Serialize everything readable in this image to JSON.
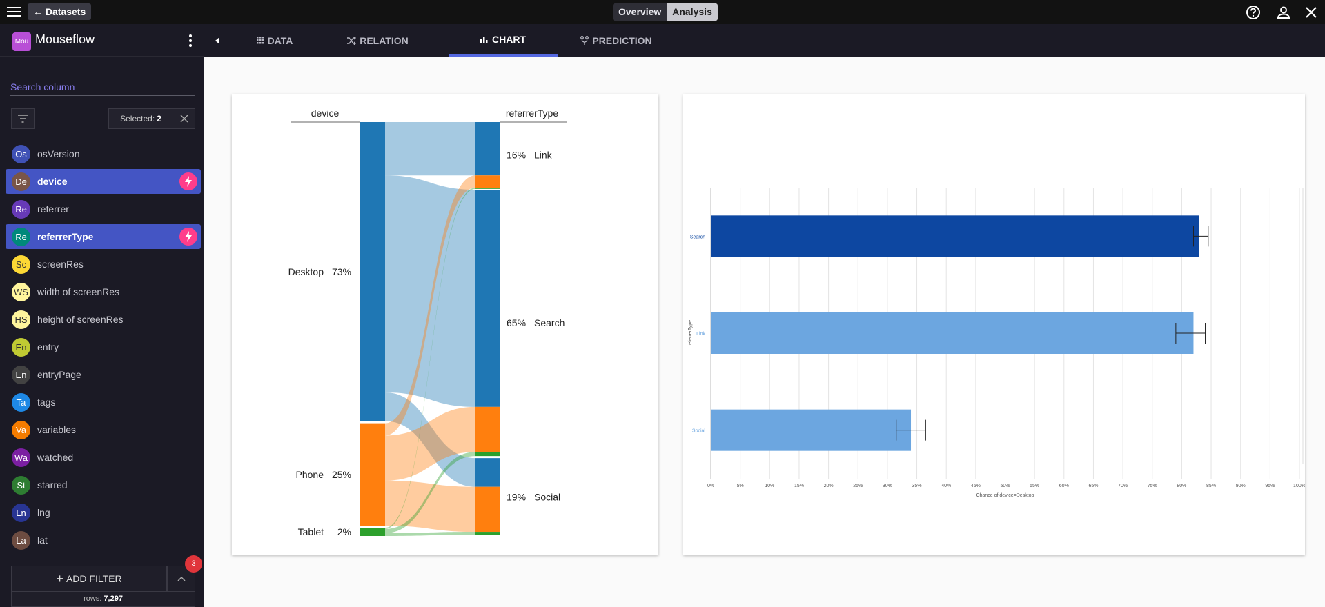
{
  "topbar": {
    "back_label": "Datasets",
    "views": [
      "Overview",
      "Analysis"
    ],
    "active_view": "Analysis"
  },
  "sidebar": {
    "dataset_badge": "Mou",
    "dataset_name": "Mouseflow",
    "search_placeholder": "Search column",
    "selected_label": "Selected:",
    "selected_count": "2",
    "columns": [
      {
        "abbr": "Os",
        "label": "osVersion",
        "color": "#3f51b5",
        "selected": false
      },
      {
        "abbr": "De",
        "label": "device",
        "color": "#795548",
        "selected": true
      },
      {
        "abbr": "Re",
        "label": "referrer",
        "color": "#673ab7",
        "selected": false
      },
      {
        "abbr": "Re",
        "label": "referrerType",
        "color": "#00897b",
        "selected": true
      },
      {
        "abbr": "Sc",
        "label": "screenRes",
        "color": "#fdd835",
        "selected": false
      },
      {
        "abbr": "WS",
        "label": "width of screenRes",
        "color": "#fff59d",
        "selected": false
      },
      {
        "abbr": "HS",
        "label": "height of screenRes",
        "color": "#fff59d",
        "selected": false
      },
      {
        "abbr": "En",
        "label": "entry",
        "color": "#c0ca33",
        "selected": false
      },
      {
        "abbr": "En",
        "label": "entryPage",
        "color": "#424242",
        "selected": false
      },
      {
        "abbr": "Ta",
        "label": "tags",
        "color": "#1e88e5",
        "selected": false
      },
      {
        "abbr": "Va",
        "label": "variables",
        "color": "#f57c00",
        "selected": false
      },
      {
        "abbr": "Wa",
        "label": "watched",
        "color": "#7b1fa2",
        "selected": false
      },
      {
        "abbr": "St",
        "label": "starred",
        "color": "#2e7d32",
        "selected": false
      },
      {
        "abbr": "Ln",
        "label": "lng",
        "color": "#283593",
        "selected": false
      },
      {
        "abbr": "La",
        "label": "lat",
        "color": "#6d4c41",
        "selected": false
      }
    ],
    "add_filter_label": "ADD FILTER",
    "filter_count": "3",
    "rows_label": "rows:",
    "rows_value": "7,297"
  },
  "tabs": [
    {
      "label": "DATA",
      "icon": "grid-icon"
    },
    {
      "label": "RELATION",
      "icon": "shuffle-icon"
    },
    {
      "label": "CHART",
      "icon": "bar-chart-icon"
    },
    {
      "label": "PREDICTION",
      "icon": "fork-icon"
    }
  ],
  "active_tab": "CHART",
  "colors": {
    "blue": "#1f77b4",
    "orange": "#ff7f0e",
    "green": "#2ca02c",
    "accent": "#5568e0",
    "bolt": "#ff3d8b"
  },
  "chart_data": [
    {
      "type": "sankey",
      "left_axis": "device",
      "right_axis": "referrerType",
      "left_nodes": [
        {
          "label": "Desktop",
          "pct": "73%",
          "value": 73
        },
        {
          "label": "Phone",
          "pct": "25%",
          "value": 25
        },
        {
          "label": "Tablet",
          "pct": "2%",
          "value": 2
        }
      ],
      "right_nodes": [
        {
          "label": "Link",
          "pct": "16%",
          "value": 16
        },
        {
          "label": "Search",
          "pct": "65%",
          "value": 65
        },
        {
          "label": "Social",
          "pct": "19%",
          "value": 19
        }
      ],
      "flows": [
        {
          "from": "Desktop",
          "to": "Link",
          "value": 13
        },
        {
          "from": "Desktop",
          "to": "Search",
          "value": 53
        },
        {
          "from": "Desktop",
          "to": "Social",
          "value": 7
        },
        {
          "from": "Phone",
          "to": "Link",
          "value": 3
        },
        {
          "from": "Phone",
          "to": "Search",
          "value": 11
        },
        {
          "from": "Phone",
          "to": "Social",
          "value": 11
        },
        {
          "from": "Tablet",
          "to": "Link",
          "value": 0.3
        },
        {
          "from": "Tablet",
          "to": "Search",
          "value": 1
        },
        {
          "from": "Tablet",
          "to": "Social",
          "value": 0.7
        }
      ]
    },
    {
      "type": "bar",
      "orientation": "horizontal",
      "categories": [
        "Search",
        "Link",
        "Social"
      ],
      "values": [
        83,
        82,
        34
      ],
      "error_low": [
        82,
        79,
        31.5
      ],
      "error_high": [
        84.5,
        84,
        36.5
      ],
      "ticks": [
        "0%",
        "5%",
        "10%",
        "15%",
        "20%",
        "25%",
        "30%",
        "35%",
        "40%",
        "45%",
        "50%",
        "55%",
        "60%",
        "65%",
        "70%",
        "75%",
        "80%",
        "85%",
        "90%",
        "95%",
        "100%"
      ],
      "xlim": [
        0,
        100
      ],
      "xlabel": "Chance of device=Desktop",
      "ylabel": "referrerType",
      "bar_colors": [
        "#0d47a1",
        "#6ca6e0",
        "#6ca6e0"
      ],
      "grid": true
    }
  ]
}
